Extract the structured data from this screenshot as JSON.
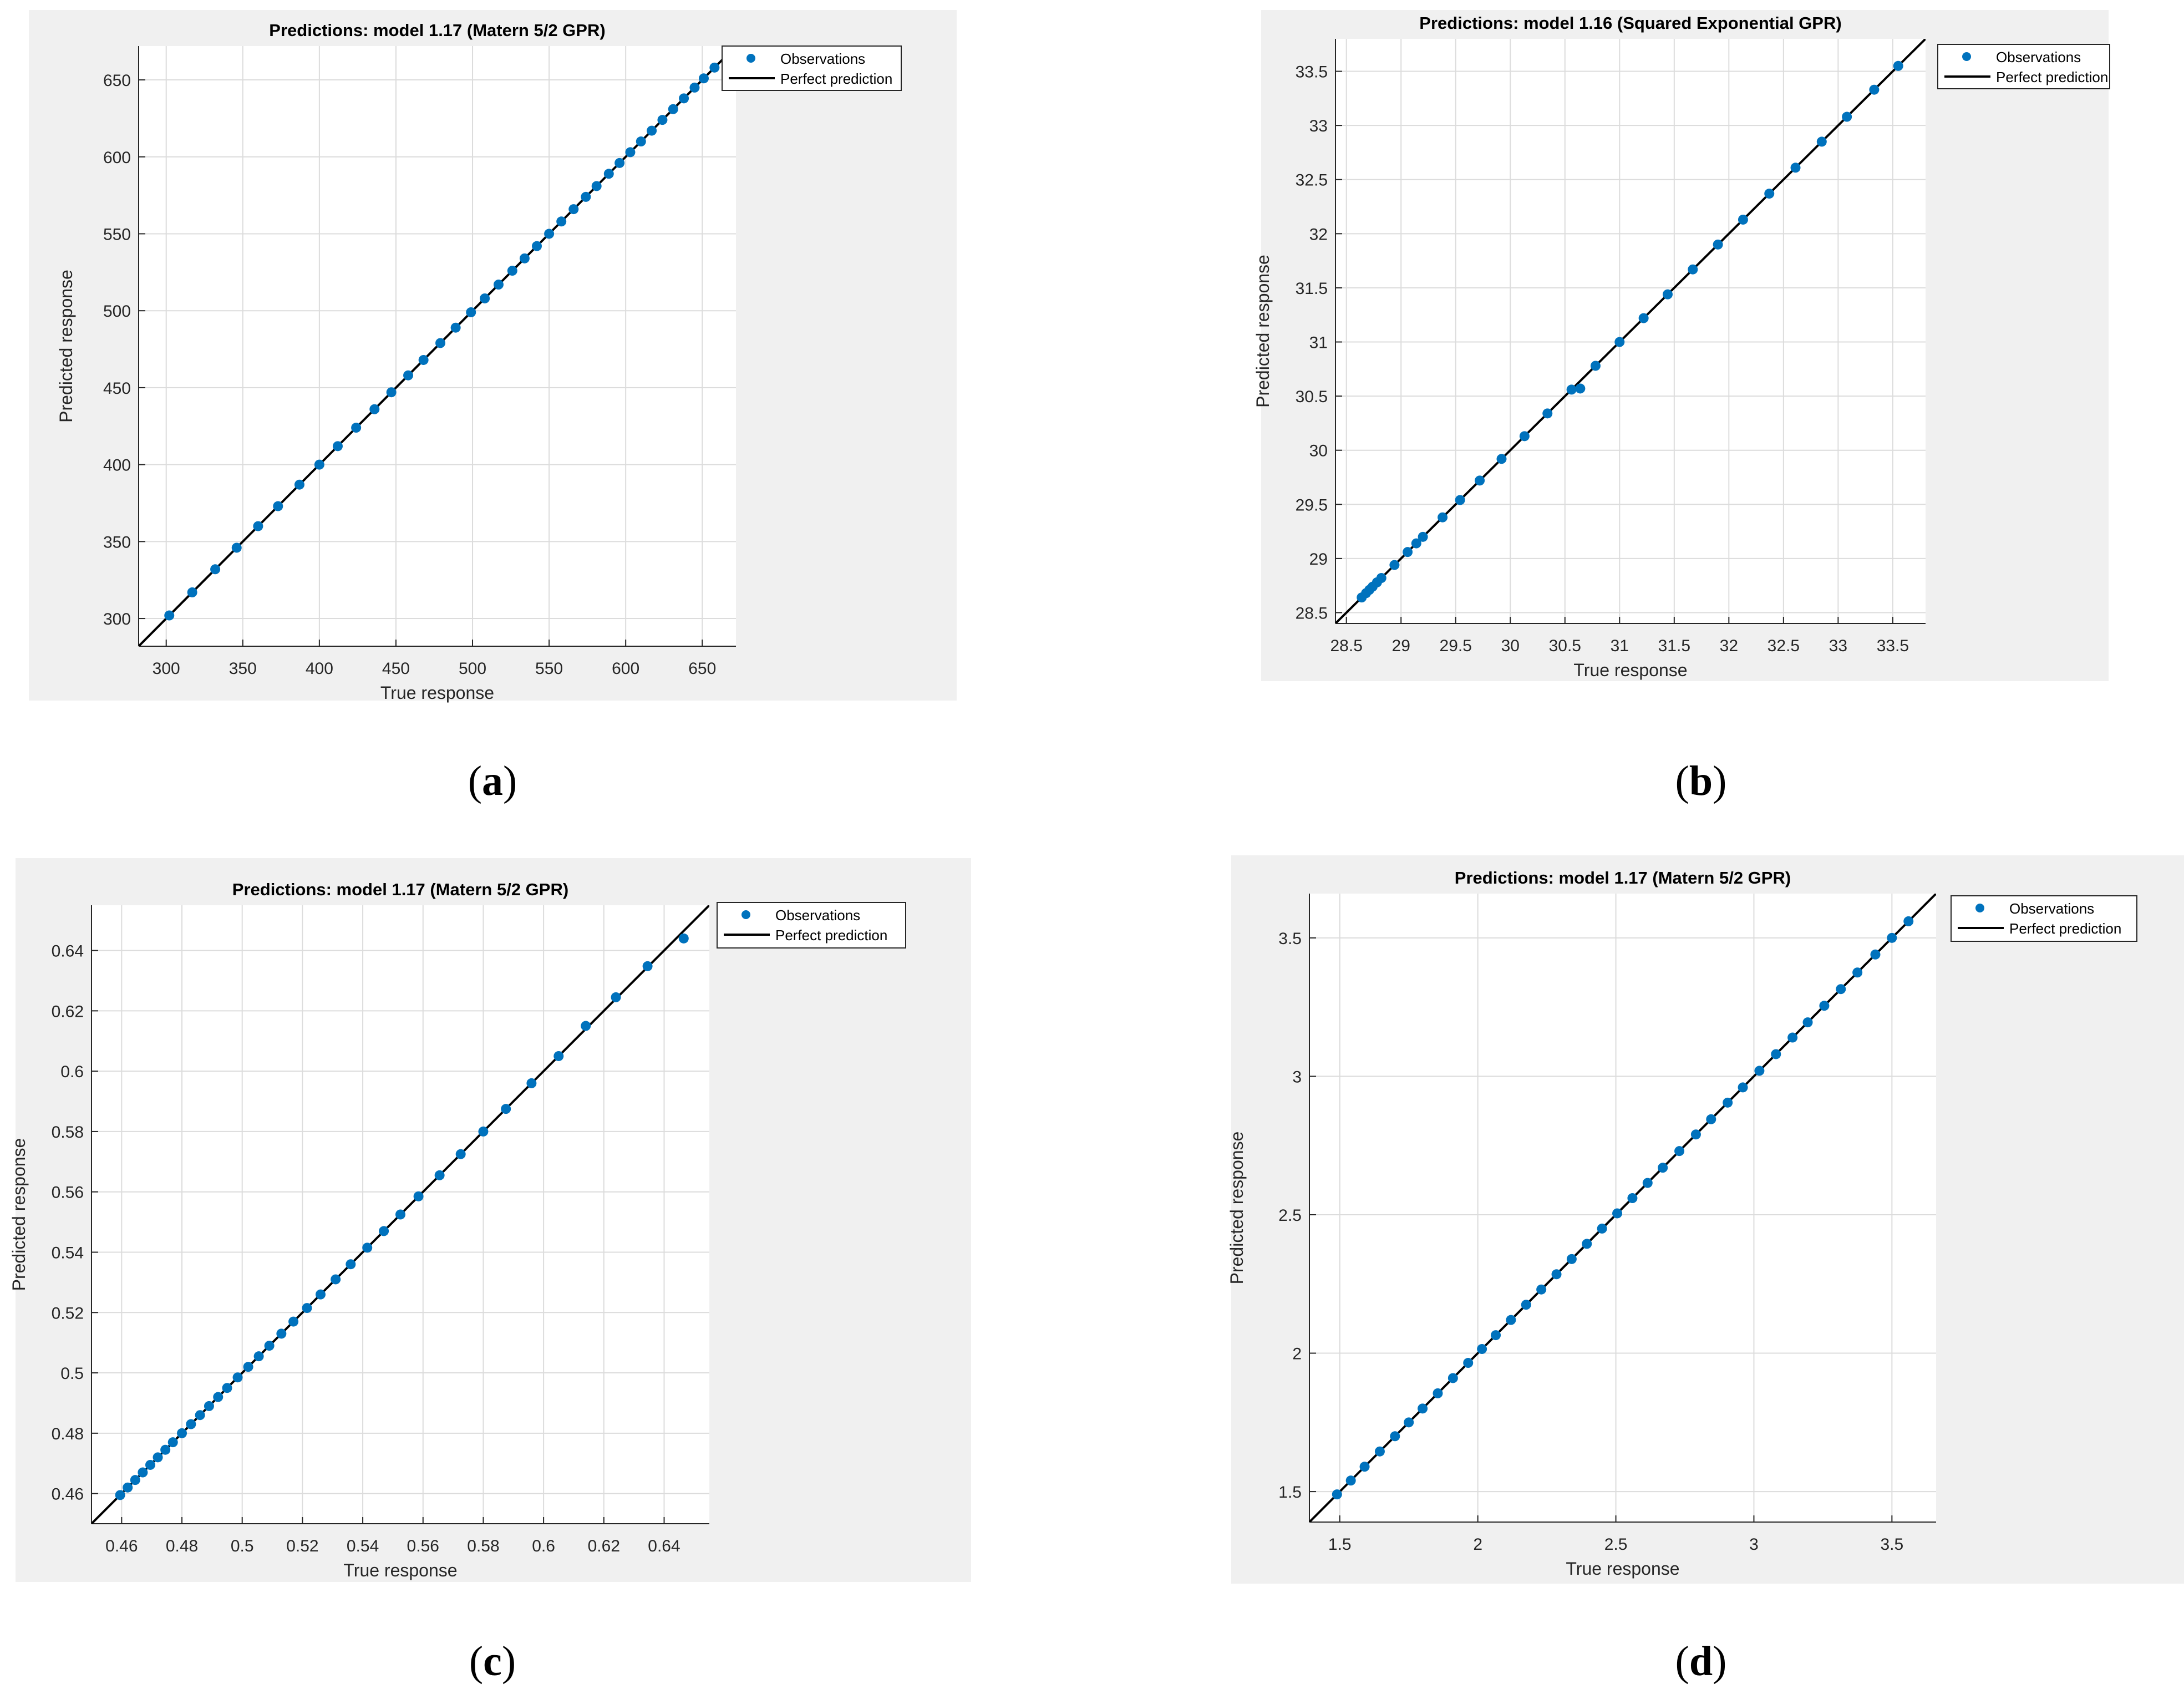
{
  "colors": {
    "marker": "#0072bd",
    "line": "#000000",
    "grid": "#dcdcdc",
    "panel_bg": "#f0f0f0"
  },
  "legend_labels": {
    "observations": "Observations",
    "perfect": "Perfect prediction"
  },
  "captions": [
    {
      "open": "(",
      "letter": "a",
      "close": ")"
    },
    {
      "open": "(",
      "letter": "b",
      "close": ")"
    },
    {
      "open": "(",
      "letter": "c",
      "close": ")"
    },
    {
      "open": "(",
      "letter": "d",
      "close": ")"
    }
  ],
  "chart_data": [
    {
      "type": "scatter",
      "title": "Predictions: model 1.17 (Matern 5/2 GPR)",
      "xlabel": "True response",
      "ylabel": "Predicted response",
      "xlim": [
        282,
        672
      ],
      "ylim": [
        282,
        672
      ],
      "xticks": [
        300,
        350,
        400,
        450,
        500,
        550,
        600,
        650
      ],
      "yticks": [
        300,
        350,
        400,
        450,
        500,
        550,
        600,
        650
      ],
      "xtick_labels": [
        "300",
        "350",
        "400",
        "450",
        "500",
        "550",
        "600",
        "650"
      ],
      "ytick_labels": [
        "300",
        "350",
        "400",
        "450",
        "500",
        "550",
        "600",
        "650"
      ],
      "grid": true,
      "legend_position": "outside-top-right",
      "series": [
        {
          "name": "Observations",
          "kind": "points",
          "x": [
            302,
            317,
            332,
            346,
            360,
            373,
            387,
            400,
            412,
            424,
            436,
            447,
            458,
            468,
            479,
            489,
            499,
            508,
            517,
            526,
            534,
            542,
            550,
            558,
            566,
            574,
            581,
            589,
            596,
            603,
            610,
            617,
            624,
            631,
            638,
            645,
            651,
            658
          ],
          "y": [
            302,
            317,
            332,
            346,
            360,
            373,
            387,
            400,
            412,
            424,
            436,
            447,
            458,
            468,
            479,
            489,
            499,
            508,
            517,
            526,
            534,
            542,
            550,
            558,
            566,
            574,
            581,
            589,
            596,
            603,
            610,
            617,
            624,
            631,
            638,
            645,
            651,
            658
          ]
        },
        {
          "name": "Perfect prediction",
          "kind": "line",
          "x": [
            282,
            672
          ],
          "y": [
            282,
            672
          ]
        }
      ]
    },
    {
      "type": "scatter",
      "title": "Predictions: model 1.16 (Squared Exponential GPR)",
      "xlabel": "True response",
      "ylabel": "Predicted response",
      "xlim": [
        28.4,
        33.8
      ],
      "ylim": [
        28.4,
        33.8
      ],
      "xticks": [
        28.5,
        29,
        29.5,
        30,
        30.5,
        31,
        31.5,
        32,
        32.5,
        33,
        33.5
      ],
      "yticks": [
        28.5,
        29,
        29.5,
        30,
        30.5,
        31,
        31.5,
        32,
        32.5,
        33,
        33.5
      ],
      "xtick_labels": [
        "28.5",
        "29",
        "29.5",
        "30",
        "30.5",
        "31",
        "31.5",
        "32",
        "32.5",
        "33",
        "33.5"
      ],
      "ytick_labels": [
        "28.5",
        "29",
        "29.5",
        "30",
        "30.5",
        "31",
        "31.5",
        "32",
        "32.5",
        "33",
        "33.5"
      ],
      "grid": true,
      "legend_position": "outside-top-right",
      "series": [
        {
          "name": "Observations",
          "kind": "points",
          "x": [
            28.64,
            28.68,
            28.71,
            28.74,
            28.78,
            28.82,
            28.94,
            29.06,
            29.14,
            29.2,
            29.38,
            29.54,
            29.72,
            29.92,
            30.13,
            30.34,
            30.56,
            30.64,
            30.78,
            31.0,
            31.22,
            31.44,
            31.67,
            31.9,
            32.13,
            32.37,
            32.61,
            32.85,
            33.08,
            33.33,
            33.55
          ],
          "y": [
            28.64,
            28.68,
            28.71,
            28.74,
            28.78,
            28.82,
            28.94,
            29.06,
            29.14,
            29.2,
            29.38,
            29.54,
            29.72,
            29.92,
            30.13,
            30.34,
            30.56,
            30.57,
            30.78,
            31.0,
            31.22,
            31.44,
            31.67,
            31.9,
            32.13,
            32.37,
            32.61,
            32.85,
            33.08,
            33.33,
            33.55
          ]
        },
        {
          "name": "Perfect prediction",
          "kind": "line",
          "x": [
            28.4,
            33.8
          ],
          "y": [
            28.4,
            33.8
          ]
        }
      ]
    },
    {
      "type": "scatter",
      "title": "Predictions: model 1.17 (Matern 5/2 GPR)",
      "xlabel": "True response",
      "ylabel": "Predicted response",
      "xlim": [
        0.45,
        0.655
      ],
      "ylim": [
        0.45,
        0.655
      ],
      "xticks": [
        0.46,
        0.48,
        0.5,
        0.52,
        0.54,
        0.56,
        0.58,
        0.6,
        0.62,
        0.64
      ],
      "yticks": [
        0.46,
        0.48,
        0.5,
        0.52,
        0.54,
        0.56,
        0.58,
        0.6,
        0.62,
        0.64
      ],
      "xtick_labels": [
        "0.46",
        "0.48",
        "0.5",
        "0.52",
        "0.54",
        "0.56",
        "0.58",
        "0.6",
        "0.62",
        "0.64"
      ],
      "ytick_labels": [
        "0.46",
        "0.48",
        "0.5",
        "0.52",
        "0.54",
        "0.56",
        "0.58",
        "0.6",
        "0.62",
        "0.64"
      ],
      "grid": true,
      "legend_position": "outside-top-right",
      "series": [
        {
          "name": "Observations",
          "kind": "points",
          "x": [
            0.4595,
            0.462,
            0.4645,
            0.467,
            0.4695,
            0.472,
            0.4745,
            0.477,
            0.48,
            0.483,
            0.486,
            0.489,
            0.492,
            0.495,
            0.4985,
            0.502,
            0.5055,
            0.509,
            0.513,
            0.517,
            0.5215,
            0.526,
            0.531,
            0.536,
            0.5415,
            0.547,
            0.5525,
            0.5585,
            0.5655,
            0.5725,
            0.58,
            0.5875,
            0.596,
            0.605,
            0.614,
            0.624,
            0.6345,
            0.6465
          ],
          "y": [
            0.4595,
            0.462,
            0.4645,
            0.467,
            0.4695,
            0.472,
            0.4745,
            0.477,
            0.48,
            0.483,
            0.486,
            0.489,
            0.492,
            0.495,
            0.4985,
            0.502,
            0.5055,
            0.509,
            0.513,
            0.517,
            0.5215,
            0.526,
            0.531,
            0.536,
            0.5415,
            0.547,
            0.5525,
            0.5585,
            0.5655,
            0.5725,
            0.58,
            0.5875,
            0.596,
            0.605,
            0.615,
            0.6245,
            0.6348,
            0.644
          ]
        },
        {
          "name": "Perfect prediction",
          "kind": "line",
          "x": [
            0.45,
            0.655
          ],
          "y": [
            0.45,
            0.655
          ]
        }
      ]
    },
    {
      "type": "scatter",
      "title": "Predictions: model 1.17 (Matern 5/2 GPR)",
      "xlabel": "True response",
      "ylabel": "Predicted response",
      "xlim": [
        1.39,
        3.66
      ],
      "ylim": [
        1.39,
        3.66
      ],
      "xticks": [
        1.5,
        2,
        2.5,
        3,
        3.5
      ],
      "yticks": [
        1.5,
        2,
        2.5,
        3,
        3.5
      ],
      "xtick_labels": [
        "1.5",
        "2",
        "2.5",
        "3",
        "3.5"
      ],
      "ytick_labels": [
        "1.5",
        "2",
        "2.5",
        "3",
        "3.5"
      ],
      "grid": true,
      "legend_position": "outside-top-right",
      "series": [
        {
          "name": "Observations",
          "kind": "points",
          "x": [
            1.49,
            1.54,
            1.59,
            1.645,
            1.7,
            1.75,
            1.8,
            1.855,
            1.91,
            1.965,
            2.015,
            2.065,
            2.12,
            2.175,
            2.23,
            2.285,
            2.34,
            2.395,
            2.45,
            2.505,
            2.56,
            2.615,
            2.67,
            2.73,
            2.79,
            2.845,
            2.905,
            2.96,
            3.02,
            3.08,
            3.14,
            3.195,
            3.255,
            3.315,
            3.375,
            3.44,
            3.5,
            3.56
          ],
          "y": [
            1.49,
            1.54,
            1.59,
            1.645,
            1.7,
            1.75,
            1.8,
            1.855,
            1.91,
            1.965,
            2.015,
            2.065,
            2.12,
            2.175,
            2.23,
            2.285,
            2.34,
            2.395,
            2.45,
            2.505,
            2.56,
            2.615,
            2.67,
            2.73,
            2.79,
            2.845,
            2.905,
            2.96,
            3.02,
            3.08,
            3.14,
            3.195,
            3.255,
            3.315,
            3.375,
            3.44,
            3.5,
            3.56
          ]
        },
        {
          "name": "Perfect prediction",
          "kind": "line",
          "x": [
            1.39,
            3.66
          ],
          "y": [
            1.39,
            3.66
          ]
        }
      ]
    }
  ]
}
